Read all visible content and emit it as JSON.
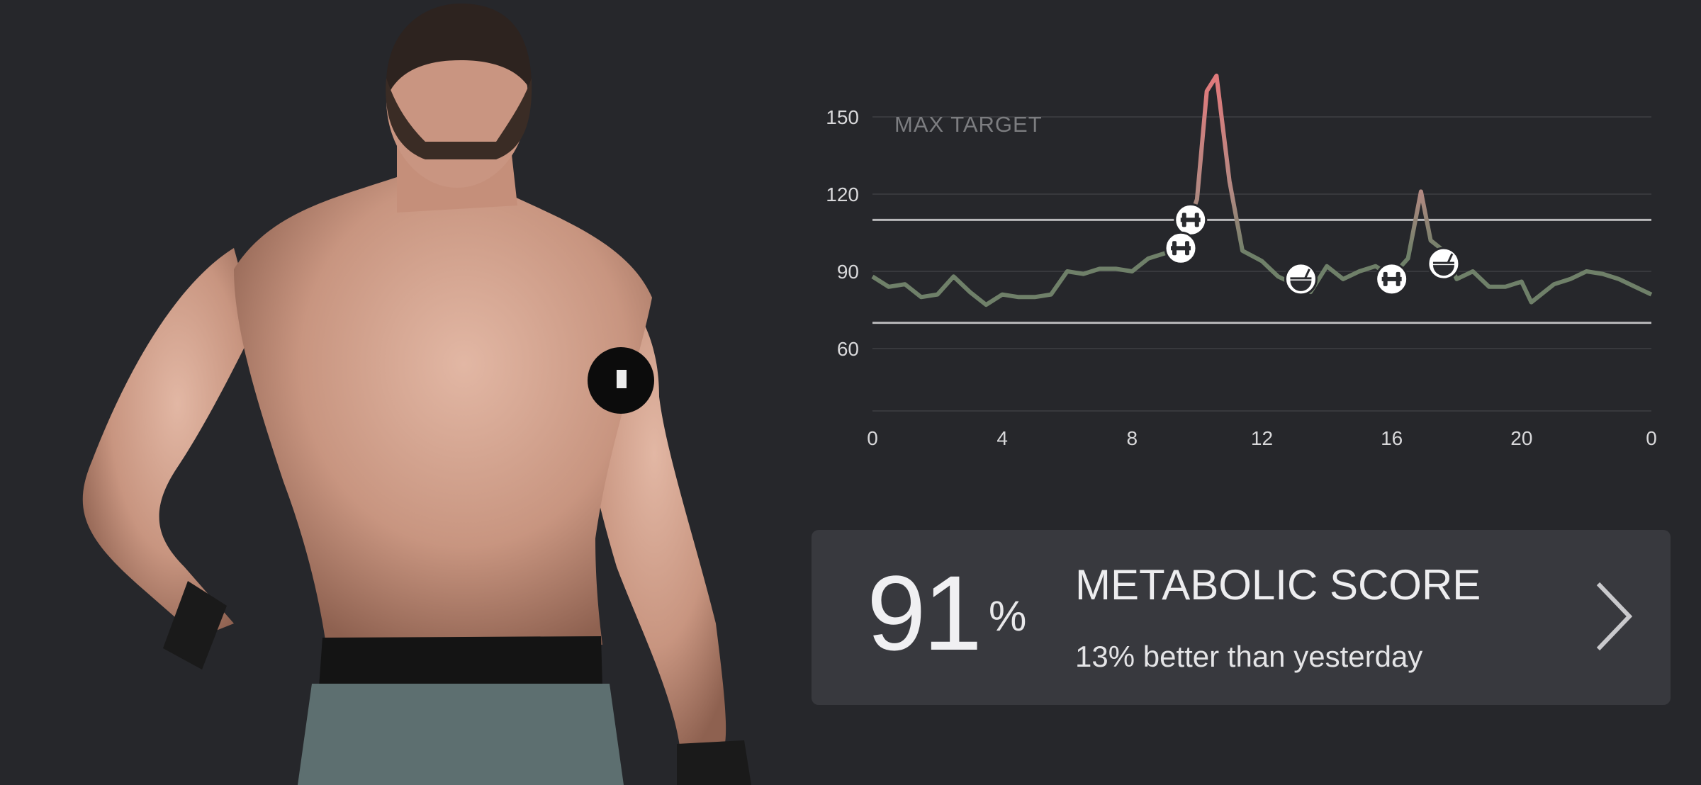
{
  "chart_data": {
    "type": "line",
    "title": "",
    "xlabel": "",
    "ylabel": "",
    "x_ticks": [
      "0",
      "4",
      "8",
      "12",
      "16",
      "20",
      "0"
    ],
    "y_ticks": [
      150,
      120,
      90,
      60
    ],
    "xlim": [
      0,
      24
    ],
    "ylim": [
      35,
      175
    ],
    "grid": true,
    "reference_lines": [
      {
        "label": "MAX TARGET",
        "value": 110
      },
      {
        "label": "",
        "value": 70
      }
    ],
    "colors": {
      "normal": "#6f8069",
      "high": "#de7a7c",
      "reference": "#b9b9bb",
      "grid": "#38393d"
    },
    "series": [
      {
        "x": [
          0,
          0.5,
          1,
          1.5,
          2,
          2.5,
          3,
          3.5,
          4,
          4.5,
          5,
          5.5,
          6,
          6.5,
          7,
          7.5,
          8,
          8.5,
          9,
          9.5,
          10,
          10.3,
          10.6,
          11,
          11.4,
          12,
          12.5,
          13,
          13.5,
          14,
          14.5,
          15,
          15.5,
          16,
          16.5,
          16.9,
          17.2,
          17.6,
          18,
          18.5,
          19,
          19.5,
          20,
          20.3,
          21,
          21.5,
          22,
          22.5,
          23,
          24
        ],
        "y": [
          88,
          84,
          85,
          80,
          81,
          88,
          82,
          77,
          81,
          80,
          80,
          81,
          90,
          89,
          91,
          91,
          90,
          95,
          97,
          100,
          118,
          160,
          166,
          125,
          98,
          94,
          88,
          85,
          82,
          92,
          87,
          90,
          92,
          88,
          95,
          121,
          102,
          98,
          87,
          90,
          84,
          84,
          86,
          78,
          85,
          87,
          90,
          89,
          87,
          81
        ]
      }
    ],
    "events": [
      {
        "type": "exercise",
        "icon": "dumbbell-icon",
        "x": 9.8,
        "y": 110
      },
      {
        "type": "exercise",
        "icon": "dumbbell-icon",
        "x": 9.5,
        "y": 99
      },
      {
        "type": "meal",
        "icon": "meal-icon",
        "x": 13.2,
        "y": 87
      },
      {
        "type": "exercise",
        "icon": "dumbbell-icon",
        "x": 16.0,
        "y": 87
      },
      {
        "type": "meal",
        "icon": "meal-icon",
        "x": 17.6,
        "y": 93
      }
    ]
  },
  "card": {
    "score": "91",
    "score_unit": "%",
    "title": "METABOLIC SCORE",
    "subtitle": "13% better than yesterday",
    "icon": "chevron-right-icon"
  }
}
